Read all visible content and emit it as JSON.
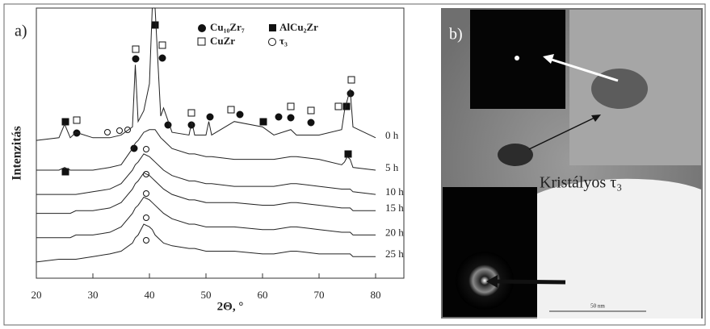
{
  "chart_data": {
    "type": "line",
    "panel_label": "a)",
    "x_label": "2Θ, °",
    "y_label": "Intenzitás",
    "x": [
      20,
      24,
      25,
      26,
      27,
      30,
      33,
      35,
      37,
      37.5,
      38,
      39,
      40,
      40.5,
      41,
      42,
      42.5,
      44,
      47,
      47.5,
      48,
      50,
      50.5,
      51,
      55,
      60,
      62,
      65,
      66,
      70,
      74,
      74.5,
      75,
      75.5,
      76,
      80
    ],
    "series": [
      {
        "name": "0 h",
        "color": "#222222",
        "values": [
          51,
          52,
          57,
          52,
          54,
          52,
          52,
          53,
          56,
          79,
          58,
          62,
          72,
          100,
          100,
          60,
          63,
          54,
          53,
          58,
          53,
          53,
          58,
          53,
          58,
          56,
          53,
          55,
          53,
          53,
          55,
          62,
          66,
          70,
          56,
          52
        ]
      },
      {
        "name": "5 h",
        "color": "#222222",
        "values": [
          40,
          40,
          41,
          40,
          40,
          40,
          41,
          42,
          48,
          50,
          51,
          54,
          55,
          55,
          55,
          52,
          51,
          48,
          46,
          46,
          46,
          45,
          45,
          45,
          44,
          44,
          44,
          45,
          45,
          44,
          42,
          43,
          45,
          44,
          41,
          40
        ]
      },
      {
        "name": "10 h",
        "color": "#222222",
        "values": [
          31,
          31,
          31,
          31,
          31,
          32,
          33,
          35,
          40,
          42,
          43,
          46,
          45,
          44,
          43,
          41,
          40,
          38,
          36,
          36,
          36,
          35,
          35,
          35,
          34,
          34,
          34,
          35,
          35,
          34,
          33,
          33,
          33,
          33,
          32,
          31
        ]
      },
      {
        "name": "15 h",
        "color": "#222222",
        "values": [
          24,
          24,
          24,
          24,
          25,
          25,
          26,
          28,
          33,
          35,
          36,
          39,
          38,
          37,
          36,
          34,
          33,
          31,
          29,
          29,
          29,
          28,
          28,
          28,
          28,
          27,
          27,
          28,
          28,
          27,
          26,
          26,
          26,
          26,
          25,
          25
        ]
      },
      {
        "name": "20 h",
        "color": "#222222",
        "values": [
          15,
          15,
          15,
          15,
          16,
          16,
          17,
          19,
          24,
          26,
          27,
          30,
          29,
          28,
          27,
          25,
          24,
          22,
          20,
          20,
          20,
          19,
          19,
          19,
          19,
          18,
          18,
          19,
          19,
          18,
          17,
          17,
          17,
          17,
          16,
          16
        ]
      },
      {
        "name": "25 h",
        "color": "#222222",
        "values": [
          6,
          7,
          7,
          7,
          7,
          8,
          9,
          10,
          13,
          15,
          16,
          20,
          19,
          18,
          16,
          14,
          13,
          12,
          11,
          11,
          11,
          10,
          10,
          10,
          10,
          9,
          9,
          10,
          10,
          9,
          9,
          9,
          9,
          9,
          8,
          8
        ]
      }
    ],
    "legend": [
      "Cu₁₀Zr₇",
      "AlCu₂Zr",
      "CuZr",
      "τ₃"
    ],
    "xlim": [
      20,
      85
    ],
    "xticks": [
      20,
      30,
      40,
      50,
      60,
      70,
      80
    ],
    "ylim": [
      0,
      100
    ]
  },
  "panel_b": {
    "label": "b)",
    "caption": "Kristályos τ₃",
    "scale_bar": "50 nm"
  }
}
